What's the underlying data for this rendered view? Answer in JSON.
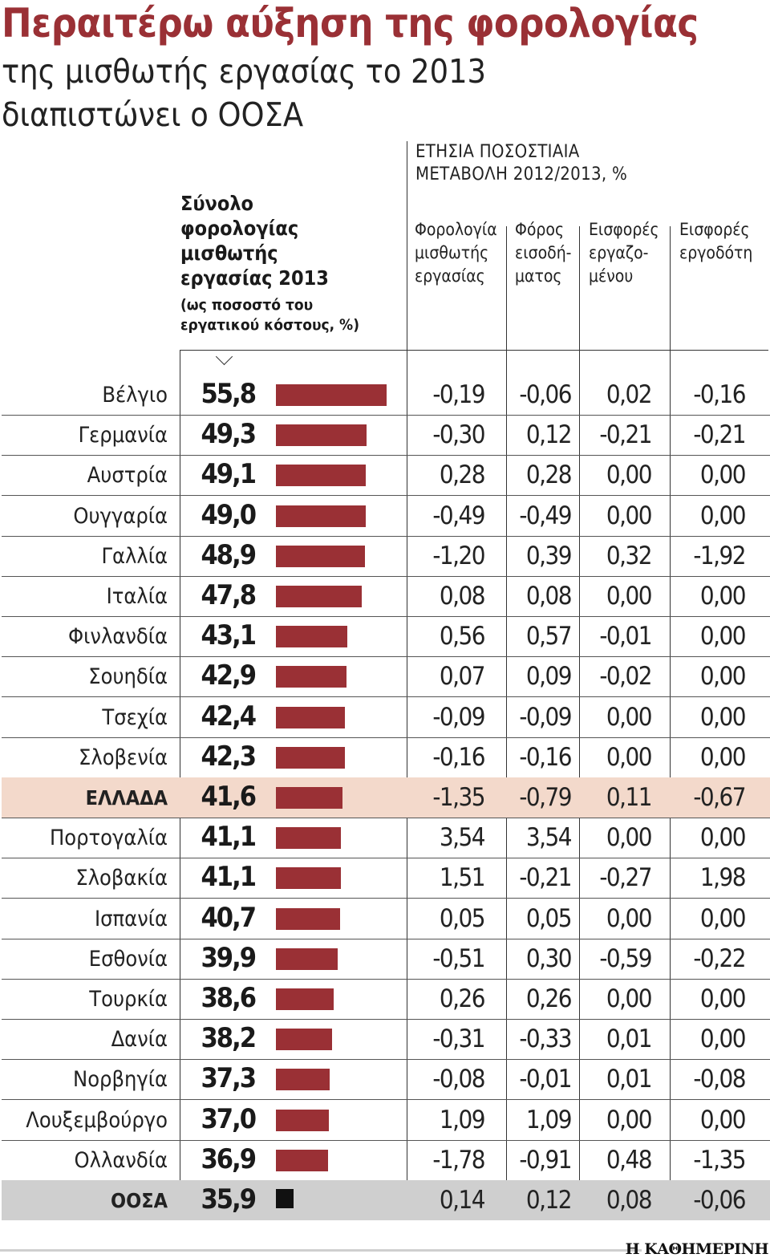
{
  "title": "Περαιτέρω αύξηση της φορολογίας",
  "subtitle_line1": "της μισθωτής εργασίας το 2013",
  "subtitle_line2": "διαπιστώνει ο ΟΟΣΑ",
  "total_header": {
    "line1": "Σύνολο",
    "line2": "φορολογίας",
    "line3": "μισθωτής",
    "line4": "εργασίας 2013",
    "note1": "(ως ποσοστό του",
    "note2": "εργατικού κόστους, %)"
  },
  "change_header": {
    "line1": "ΕΤΗΣΙΑ ΠΟΣΟΣΤΙΑΙΑ",
    "line2": "ΜΕΤΑΒΟΛΗ 2012/2013, %"
  },
  "columns": [
    {
      "l1": "Φορολογία",
      "l2": "μισθωτής",
      "l3": "εργασίας"
    },
    {
      "l1": "Φόρος",
      "l2": "εισοδή-",
      "l3": "ματος"
    },
    {
      "l1": "Εισφορές",
      "l2": "εργαζο-",
      "l3": "μένου"
    },
    {
      "l1": "Εισφορές",
      "l2": "εργοδότη",
      "l3": ""
    }
  ],
  "brand": "Η ΚΑΘΗΜΕΡΙΝΗ",
  "colors": {
    "bar": "#9a3035",
    "oecd_bar": "#111111",
    "highlight": "#f3d9cb",
    "oecd_row": "#cfcfcf"
  },
  "chart_data": {
    "type": "bar",
    "title": "Περαιτέρω αύξηση της φορολογίας",
    "ylabel": "Σύνολο φορολογίας μισθωτής εργασίας 2013 (ως ποσοστό του εργατικού κόστους, %)",
    "bar_scale": {
      "zero_value": 20,
      "max_value": 55.8
    },
    "rows": [
      {
        "country": "Βέλγιο",
        "total": 55.8,
        "total_label": "55,8",
        "changes": [
          "-0,19",
          "-0,06",
          "0,02",
          "-0,16"
        ]
      },
      {
        "country": "Γερμανία",
        "total": 49.3,
        "total_label": "49,3",
        "changes": [
          "-0,30",
          "0,12",
          "-0,21",
          "-0,21"
        ]
      },
      {
        "country": "Αυστρία",
        "total": 49.1,
        "total_label": "49,1",
        "changes": [
          "0,28",
          "0,28",
          "0,00",
          "0,00"
        ]
      },
      {
        "country": "Ουγγαρία",
        "total": 49.0,
        "total_label": "49,0",
        "changes": [
          "-0,49",
          "-0,49",
          "0,00",
          "0,00"
        ]
      },
      {
        "country": "Γαλλία",
        "total": 48.9,
        "total_label": "48,9",
        "changes": [
          "-1,20",
          "0,39",
          "0,32",
          "-1,92"
        ]
      },
      {
        "country": "Ιταλία",
        "total": 47.8,
        "total_label": "47,8",
        "changes": [
          "0,08",
          "0,08",
          "0,00",
          "0,00"
        ]
      },
      {
        "country": "Φινλανδία",
        "total": 43.1,
        "total_label": "43,1",
        "changes": [
          "0,56",
          "0,57",
          "-0,01",
          "0,00"
        ]
      },
      {
        "country": "Σουηδία",
        "total": 42.9,
        "total_label": "42,9",
        "changes": [
          "0,07",
          "0,09",
          "-0,02",
          "0,00"
        ]
      },
      {
        "country": "Τσεχία",
        "total": 42.4,
        "total_label": "42,4",
        "changes": [
          "-0,09",
          "-0,09",
          "0,00",
          "0,00"
        ]
      },
      {
        "country": "Σλοβενία",
        "total": 42.3,
        "total_label": "42,3",
        "changes": [
          "-0,16",
          "-0,16",
          "0,00",
          "0,00"
        ]
      },
      {
        "country": "ΕΛΛΑΔΑ",
        "total": 41.6,
        "total_label": "41,6",
        "changes": [
          "-1,35",
          "-0,79",
          "0,11",
          "-0,67"
        ],
        "highlight": true
      },
      {
        "country": "Πορτογαλία",
        "total": 41.1,
        "total_label": "41,1",
        "changes": [
          "3,54",
          "3,54",
          "0,00",
          "0,00"
        ]
      },
      {
        "country": "Σλοβακία",
        "total": 41.1,
        "total_label": "41,1",
        "changes": [
          "1,51",
          "-0,21",
          "-0,27",
          "1,98"
        ]
      },
      {
        "country": "Ισπανία",
        "total": 40.7,
        "total_label": "40,7",
        "changes": [
          "0,05",
          "0,05",
          "0,00",
          "0,00"
        ]
      },
      {
        "country": "Εσθονία",
        "total": 39.9,
        "total_label": "39,9",
        "changes": [
          "-0,51",
          "0,30",
          "-0,59",
          "-0,22"
        ]
      },
      {
        "country": "Τουρκία",
        "total": 38.6,
        "total_label": "38,6",
        "changes": [
          "0,26",
          "0,26",
          "0,00",
          "0,00"
        ]
      },
      {
        "country": "Δανία",
        "total": 38.2,
        "total_label": "38,2",
        "changes": [
          "-0,31",
          "-0,33",
          "0,01",
          "0,00"
        ]
      },
      {
        "country": "Νορβηγία",
        "total": 37.3,
        "total_label": "37,3",
        "changes": [
          "-0,08",
          "-0,01",
          "0,01",
          "-0,08"
        ]
      },
      {
        "country": "Λουξεμβούργο",
        "total": 37.0,
        "total_label": "37,0",
        "changes": [
          "1,09",
          "1,09",
          "0,00",
          "0,00"
        ]
      },
      {
        "country": "Ολλανδία",
        "total": 36.9,
        "total_label": "36,9",
        "changes": [
          "-1,78",
          "-0,91",
          "0,48",
          "-1,35"
        ]
      },
      {
        "country": "ΟΟΣΑ",
        "total": 35.9,
        "total_label": "35,9",
        "changes": [
          "0,14",
          "0,12",
          "0,08",
          "-0,06"
        ],
        "oecd": true
      }
    ]
  }
}
